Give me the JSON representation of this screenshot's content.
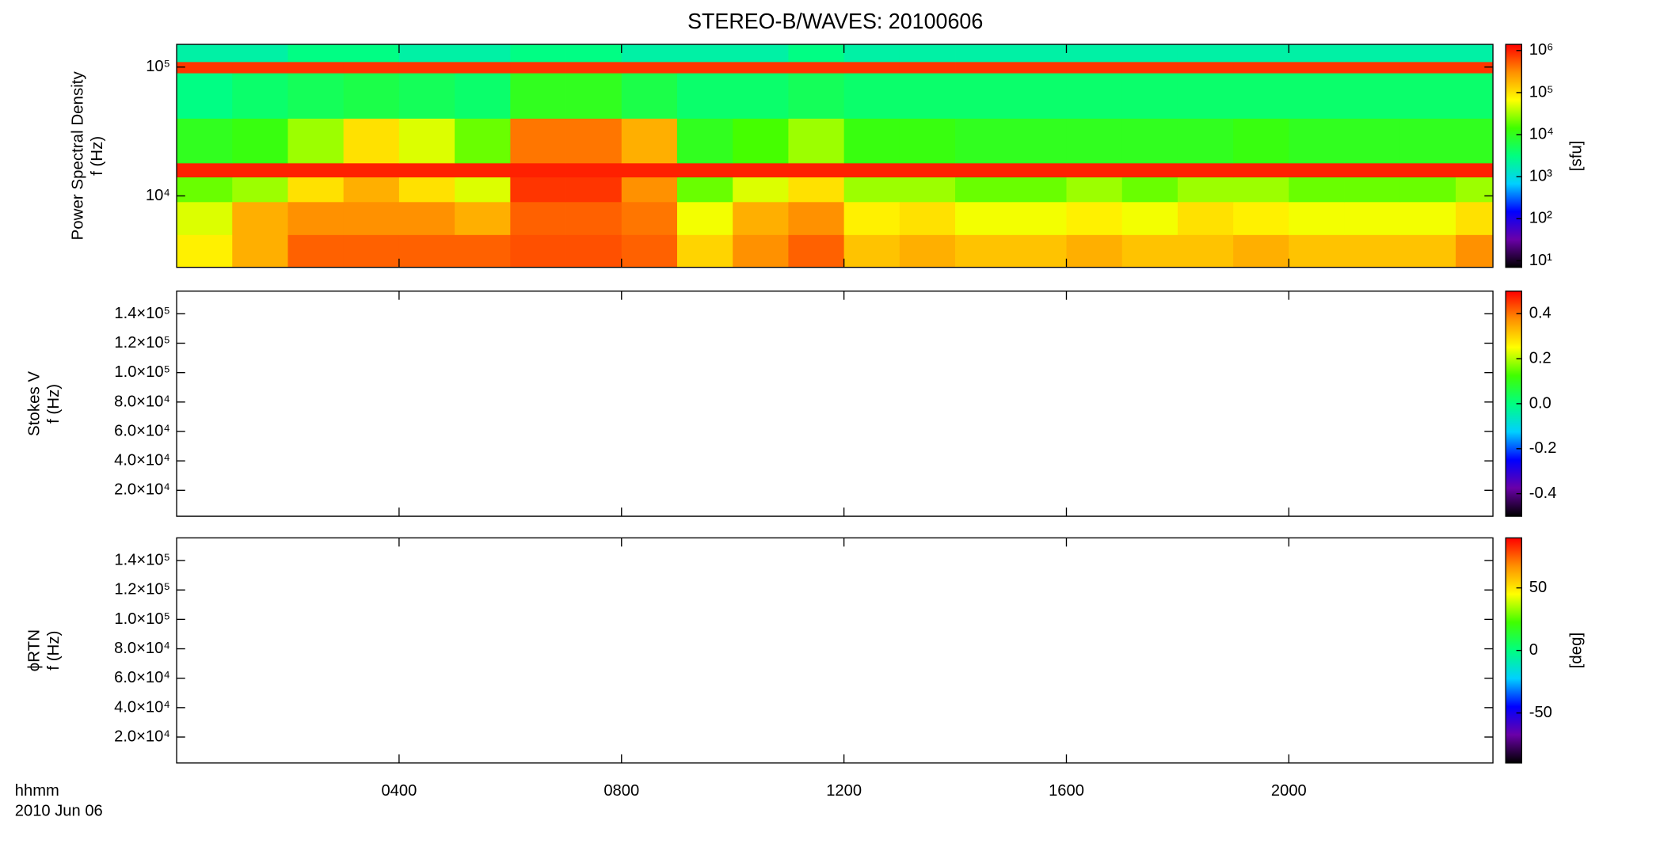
{
  "page": {
    "title": "STEREO-B/WAVES: 20100606",
    "x_label_lines": [
      "hhmm",
      "2010 Jun 06"
    ]
  },
  "time_axis": {
    "xlim": [
      0,
      23.67
    ],
    "xticks": [
      {
        "value": 4,
        "label": "0400"
      },
      {
        "value": 8,
        "label": "0800"
      },
      {
        "value": 12,
        "label": "1200"
      },
      {
        "value": 16,
        "label": "1600"
      },
      {
        "value": 20,
        "label": "2000"
      }
    ]
  },
  "chart_data": [
    {
      "type": "heatmap",
      "ylabel_lines": [
        "Power Spectral Density",
        "f (Hz)"
      ],
      "yscale": "log",
      "ylim": [
        2790,
        150000
      ],
      "yticks": [
        {
          "value": 10000,
          "label": "10⁴"
        },
        {
          "value": 100000,
          "label": "10⁵"
        }
      ],
      "time_bins": [
        0,
        1,
        2,
        3,
        4,
        5,
        6,
        7,
        8,
        9,
        10,
        11,
        12,
        13,
        14,
        15,
        16,
        17,
        18,
        19,
        20,
        21,
        22,
        23,
        23.67
      ],
      "freq_bins": [
        2790,
        5000,
        9000,
        14000,
        18000,
        40000,
        90000,
        110000,
        150000
      ],
      "values": [
        [
          80000,
          200000,
          500000,
          500000,
          500000,
          500000,
          600000,
          600000,
          500000,
          120000,
          300000,
          500000,
          150000,
          200000,
          150000,
          150000,
          200000,
          150000,
          150000,
          200000,
          150000,
          150000,
          150000,
          300000
        ],
        [
          50000,
          200000,
          300000,
          300000,
          300000,
          200000,
          500000,
          500000,
          400000,
          60000,
          200000,
          300000,
          80000,
          100000,
          60000,
          60000,
          80000,
          60000,
          100000,
          80000,
          60000,
          60000,
          60000,
          100000
        ],
        [
          20000,
          30000,
          100000,
          200000,
          100000,
          50000,
          800000,
          800000,
          300000,
          20000,
          50000,
          100000,
          30000,
          30000,
          20000,
          20000,
          30000,
          20000,
          30000,
          30000,
          20000,
          20000,
          20000,
          30000
        ],
        [
          1000000,
          1000000,
          1000000,
          1000000,
          1000000,
          1000000,
          1000000,
          1000000,
          1000000,
          1000000,
          1000000,
          1000000,
          1000000,
          1000000,
          1000000,
          1000000,
          1000000,
          1000000,
          1000000,
          1000000,
          1000000,
          1000000,
          1000000,
          1000000
        ],
        [
          10000,
          12000,
          30000,
          100000,
          50000,
          20000,
          400000,
          400000,
          200000,
          10000,
          15000,
          30000,
          12000,
          12000,
          10000,
          10000,
          10000,
          10000,
          10000,
          12000,
          10000,
          10000,
          10000,
          10000
        ],
        [
          3000,
          4000,
          5000,
          6000,
          5000,
          4000,
          10000,
          10000,
          6000,
          4000,
          4000,
          5000,
          4000,
          4000,
          4000,
          4000,
          4000,
          4000,
          4000,
          4000,
          4000,
          4000,
          4000,
          4000
        ],
        [
          800000,
          800000,
          800000,
          800000,
          800000,
          800000,
          800000,
          800000,
          800000,
          800000,
          800000,
          800000,
          800000,
          800000,
          800000,
          800000,
          800000,
          800000,
          800000,
          800000,
          800000,
          800000,
          800000,
          800000
        ],
        [
          2000,
          2000,
          3000,
          3000,
          2000,
          2000,
          3000,
          3000,
          2000,
          2000,
          2000,
          3000,
          2000,
          2000,
          2000,
          2000,
          2000,
          2000,
          2000,
          2000,
          2000,
          2000,
          2000,
          2000
        ]
      ],
      "colorbar": {
        "zscale": "log",
        "zlim": [
          7,
          1400000
        ],
        "label": "[sfu]",
        "zticks": [
          {
            "value": 10,
            "label": "10¹"
          },
          {
            "value": 100,
            "label": "10²"
          },
          {
            "value": 1000,
            "label": "10³"
          },
          {
            "value": 10000,
            "label": "10⁴"
          },
          {
            "value": 100000,
            "label": "10⁵"
          },
          {
            "value": 1000000,
            "label": "10⁶"
          }
        ],
        "colormap": [
          "#000000",
          "#6a00a8",
          "#0000ff",
          "#00d0ff",
          "#00ff80",
          "#40ff00",
          "#ffff00",
          "#ff9000",
          "#ff0000"
        ]
      }
    },
    {
      "type": "heatmap",
      "ylabel_lines": [
        "Stokes V",
        "f (Hz)"
      ],
      "yscale": "linear",
      "ylim": [
        2350,
        155400
      ],
      "yticks": [
        {
          "value": 20000,
          "label": "2.0×10⁴"
        },
        {
          "value": 40000,
          "label": "4.0×10⁴"
        },
        {
          "value": 60000,
          "label": "6.0×10⁴"
        },
        {
          "value": 80000,
          "label": "8.0×10⁴"
        },
        {
          "value": 100000,
          "label": "1.0×10⁵"
        },
        {
          "value": 120000,
          "label": "1.2×10⁵"
        },
        {
          "value": 140000,
          "label": "1.4×10⁵"
        }
      ],
      "colorbar": {
        "zscale": "linear",
        "zlim": [
          -0.5,
          0.5
        ],
        "label": "",
        "zticks": [
          -0.4,
          -0.2,
          {
            "value": 0,
            "label": "0.0"
          },
          0.2,
          0.4
        ],
        "colormap": [
          "#000000",
          "#6a00a8",
          "#0000ff",
          "#00d0ff",
          "#00ff80",
          "#40ff00",
          "#ffff00",
          "#ff9000",
          "#ff0000"
        ]
      }
    },
    {
      "type": "heatmap",
      "ylabel_lines": [
        "ϕRTN",
        "f (Hz)"
      ],
      "yscale": "linear",
      "ylim": [
        2350,
        155400
      ],
      "yticks": [
        {
          "value": 20000,
          "label": "2.0×10⁴"
        },
        {
          "value": 40000,
          "label": "4.0×10⁴"
        },
        {
          "value": 60000,
          "label": "6.0×10⁴"
        },
        {
          "value": 80000,
          "label": "8.0×10⁴"
        },
        {
          "value": 100000,
          "label": "1.0×10⁵"
        },
        {
          "value": 120000,
          "label": "1.2×10⁵"
        },
        {
          "value": 140000,
          "label": "1.4×10⁵"
        }
      ],
      "colorbar": {
        "zscale": "linear",
        "zlim": [
          -90,
          90
        ],
        "label": "[deg]",
        "zticks": [
          -50,
          0,
          50
        ],
        "colormap": [
          "#000000",
          "#6a00a8",
          "#0000ff",
          "#00d0ff",
          "#00ff80",
          "#40ff00",
          "#ffff00",
          "#ff9000",
          "#ff0000"
        ]
      }
    }
  ]
}
